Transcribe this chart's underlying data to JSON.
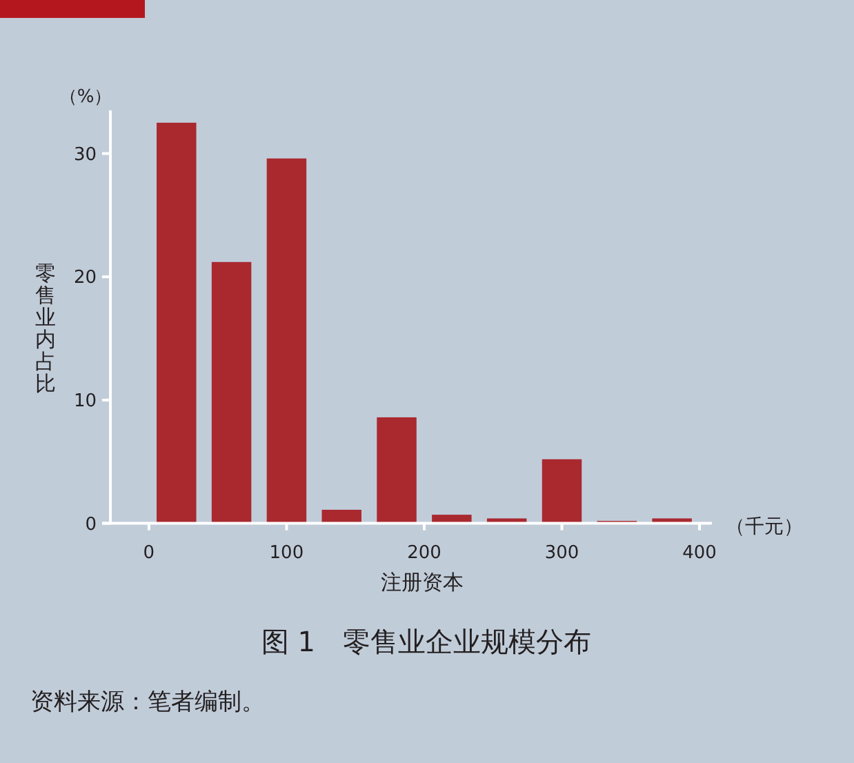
{
  "chart_data": {
    "type": "bar",
    "title": "图 1　零售业企业规模分布",
    "xlabel": "注册资本",
    "ylabel": "零售业内占比",
    "annotations": [
      "（%）",
      "（千元）",
      "资料来源：笔者编制。"
    ],
    "x": [
      20,
      60,
      100,
      140,
      180,
      220,
      260,
      300,
      340,
      380
    ],
    "values": [
      32.5,
      21.2,
      29.6,
      1.1,
      8.6,
      0.7,
      0.4,
      5.2,
      0.2,
      0.4
    ],
    "color": "#a9292f",
    "xlim": [
      -28,
      409
    ],
    "ylim": [
      0,
      33.5
    ],
    "xticks": [
      0,
      100,
      200,
      300,
      400
    ],
    "yticks": [
      0,
      10,
      20,
      30
    ]
  }
}
